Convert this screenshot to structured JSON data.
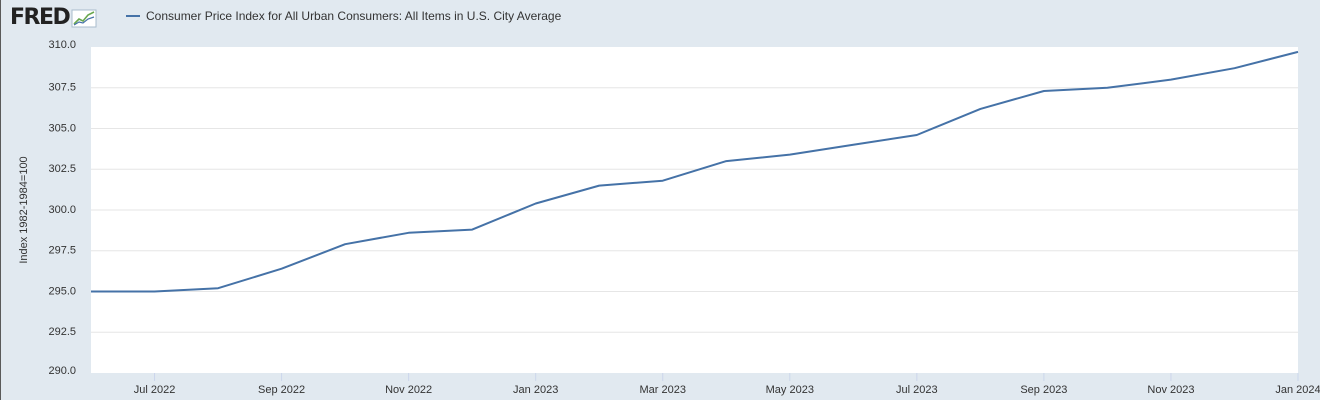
{
  "brand": {
    "logo_text": "FRED"
  },
  "colors": {
    "background": "#e1e9f0",
    "plot_background": "#ffffff",
    "series_line": "#4572a7",
    "gridline": "#e6e6e6",
    "axis_text": "#333333"
  },
  "chart_data": {
    "type": "line",
    "title": "",
    "xlabel": "",
    "ylabel": "Index 1982-1984=100",
    "ylim": [
      290.0,
      310.0
    ],
    "grid": true,
    "legend_position": "top-left",
    "x_start": "2022-06",
    "x_end": "2024-01",
    "yticks": [
      "310.0",
      "307.5",
      "305.0",
      "302.5",
      "300.0",
      "297.5",
      "295.0",
      "292.5",
      "290.0"
    ],
    "xticks": [
      {
        "date": "2022-07",
        "label": "Jul 2022"
      },
      {
        "date": "2022-09",
        "label": "Sep 2022"
      },
      {
        "date": "2022-11",
        "label": "Nov 2022"
      },
      {
        "date": "2023-01",
        "label": "Jan 2023"
      },
      {
        "date": "2023-03",
        "label": "Mar 2023"
      },
      {
        "date": "2023-05",
        "label": "May 2023"
      },
      {
        "date": "2023-07",
        "label": "Jul 2023"
      },
      {
        "date": "2023-09",
        "label": "Sep 2023"
      },
      {
        "date": "2023-11",
        "label": "Nov 2023"
      },
      {
        "date": "2024-01",
        "label": "Jan 2024"
      }
    ],
    "series": [
      {
        "name": "Consumer Price Index for All Urban Consumers: All Items in U.S. City Average",
        "x": [
          "2022-06",
          "2022-07",
          "2022-08",
          "2022-09",
          "2022-10",
          "2022-11",
          "2022-12",
          "2023-01",
          "2023-02",
          "2023-03",
          "2023-04",
          "2023-05",
          "2023-06",
          "2023-07",
          "2023-08",
          "2023-09",
          "2023-10",
          "2023-11",
          "2023-12",
          "2024-01"
        ],
        "values": [
          295.0,
          295.0,
          295.2,
          296.4,
          297.9,
          298.6,
          298.8,
          300.4,
          301.5,
          301.8,
          303.0,
          303.4,
          304.0,
          304.6,
          306.2,
          307.3,
          307.5,
          308.0,
          308.7,
          309.7
        ]
      }
    ]
  }
}
